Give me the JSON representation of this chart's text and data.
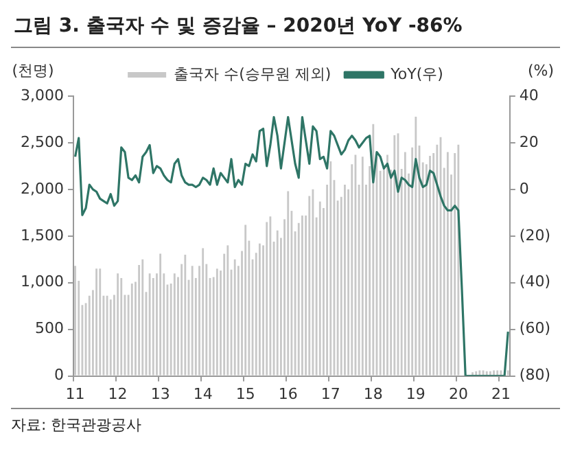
{
  "chart_data": {
    "type": "bar",
    "title": "그림 3. 출국자 수 및 증감율 – 2020년 YoY -86%",
    "ylabel": "(천명)",
    "y2label": "(%)",
    "annotations": [
      "자료: 한국관광공사"
    ],
    "categories": [
      "11",
      null,
      null,
      null,
      null,
      null,
      null,
      null,
      null,
      null,
      null,
      null,
      "12",
      null,
      null,
      null,
      null,
      null,
      null,
      null,
      null,
      null,
      null,
      null,
      "13",
      null,
      null,
      null,
      null,
      null,
      null,
      null,
      null,
      null,
      null,
      null,
      "14",
      null,
      null,
      null,
      null,
      null,
      null,
      null,
      null,
      null,
      null,
      null,
      "15",
      null,
      null,
      null,
      null,
      null,
      null,
      null,
      null,
      null,
      null,
      null,
      "16",
      null,
      null,
      null,
      null,
      null,
      null,
      null,
      null,
      null,
      null,
      null,
      "17",
      null,
      null,
      null,
      null,
      null,
      null,
      null,
      null,
      null,
      null,
      null,
      "18",
      null,
      null,
      null,
      null,
      null,
      null,
      null,
      null,
      null,
      null,
      null,
      "19",
      null,
      null,
      null,
      null,
      null,
      null,
      null,
      null,
      null,
      null,
      null,
      "20",
      null,
      null,
      null,
      null,
      null,
      null,
      null,
      null,
      null,
      null,
      null,
      "21",
      null,
      null
    ],
    "series": [
      {
        "name": "출국자 수(승무원 제외)",
        "color": "#c8c8c8",
        "values": [
          1180,
          1020,
          760,
          780,
          860,
          920,
          1150,
          1150,
          860,
          860,
          820,
          870,
          1100,
          1050,
          870,
          870,
          990,
          1010,
          1190,
          1250,
          900,
          1100,
          1050,
          1100,
          1310,
          1100,
          980,
          990,
          1100,
          1060,
          1200,
          1300,
          1030,
          1180,
          1050,
          1180,
          1370,
          1200,
          1050,
          1060,
          1150,
          1130,
          1310,
          1400,
          1140,
          1250,
          1180,
          1340,
          1620,
          1450,
          1250,
          1320,
          1420,
          1400,
          1650,
          1710,
          1440,
          1560,
          1480,
          1680,
          1980,
          1770,
          1550,
          1640,
          1720,
          1720,
          1930,
          2000,
          1700,
          1870,
          1800,
          2050,
          2300,
          2100,
          1880,
          1920,
          2050,
          2000,
          2270,
          2370,
          2050,
          2350,
          2050,
          2250,
          2700,
          2350,
          2200,
          2250,
          2370,
          2210,
          2580,
          2600,
          2220,
          2400,
          2170,
          2450,
          2780,
          2470,
          2290,
          2270,
          2360,
          2390,
          2480,
          2560,
          2230,
          2400,
          2160,
          2390,
          2480,
          null,
          null,
          null,
          40,
          50,
          60,
          60,
          50,
          50,
          60,
          60,
          60,
          null,
          60
        ]
      },
      {
        "name": "YoY(우)",
        "type": "line",
        "axis": "y2",
        "color": "#2e7566",
        "values": [
          14,
          22,
          -11,
          -8,
          2,
          0,
          -1,
          -4,
          -5,
          -6,
          -2,
          -7,
          -5,
          18,
          16,
          5,
          4,
          6,
          3,
          14,
          16,
          19,
          7,
          10,
          9,
          6,
          4,
          3,
          11,
          13,
          6,
          3,
          2,
          2,
          1,
          2,
          5,
          4,
          2,
          9,
          2,
          7,
          5,
          3,
          13,
          1,
          4,
          2,
          11,
          10,
          15,
          12,
          25,
          26,
          10,
          19,
          31,
          23,
          9,
          20,
          31,
          21,
          11,
          5,
          31,
          21,
          11,
          27,
          25,
          13,
          14,
          9,
          25,
          23,
          19,
          15,
          17,
          21,
          23,
          21,
          18,
          20,
          22,
          23,
          3,
          16,
          14,
          9,
          11,
          5,
          8,
          -1,
          5,
          4,
          2,
          1,
          13,
          5,
          1,
          2,
          8,
          7,
          2,
          -3,
          -7,
          -9,
          -9,
          -7,
          -9,
          -43,
          -80,
          -80,
          -80,
          -80,
          -80,
          -80,
          -80,
          -80,
          -80,
          -80,
          -80,
          -80,
          -61
        ]
      }
    ],
    "ylim": [
      0,
      3000
    ],
    "yticks": [
      {
        "value": 0,
        "label": "0"
      },
      {
        "value": 500,
        "label": "500"
      },
      {
        "value": 1000,
        "label": "1,000"
      },
      {
        "value": 1500,
        "label": "1,500"
      },
      {
        "value": 2000,
        "label": "2,000"
      },
      {
        "value": 2500,
        "label": "2,500"
      },
      {
        "value": 3000,
        "label": "3,000"
      }
    ],
    "y2lim": [
      -80,
      40
    ],
    "y2ticks": [
      {
        "value": -80,
        "label": "(80)"
      },
      {
        "value": -60,
        "label": "(60)"
      },
      {
        "value": -40,
        "label": "(40)"
      },
      {
        "value": -20,
        "label": "(20)"
      },
      0,
      20,
      40
    ],
    "legend": "top"
  }
}
